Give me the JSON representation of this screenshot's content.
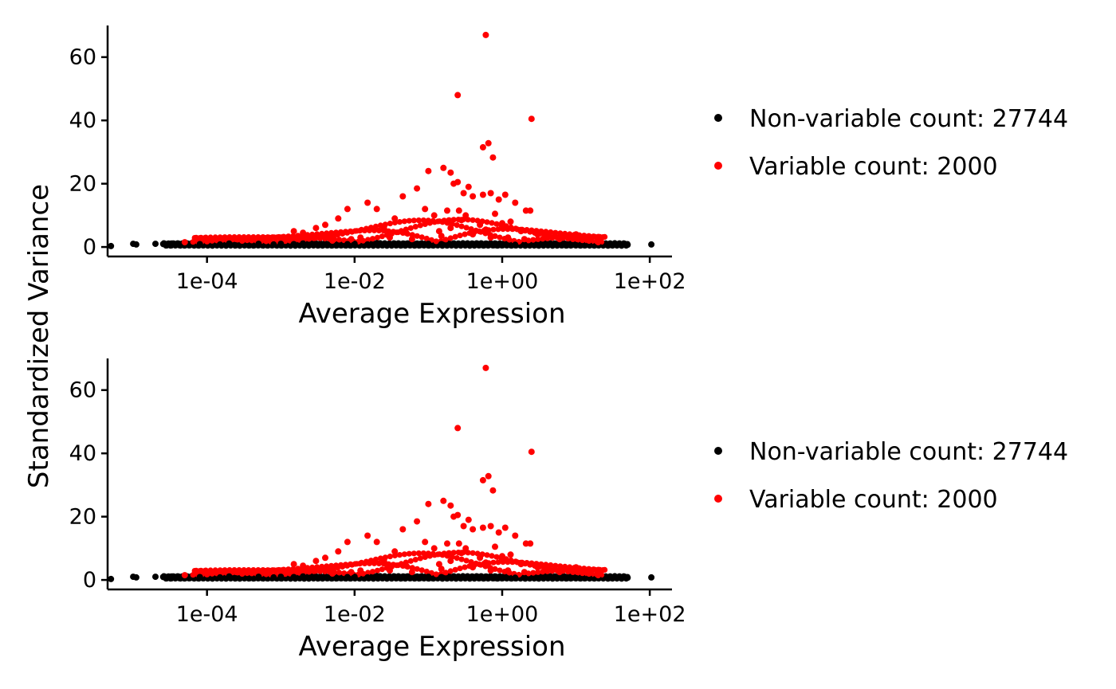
{
  "colors": {
    "non_variable": "#000000",
    "variable": "#ff0000",
    "axis": "#000000",
    "background": "#ffffff"
  },
  "y_axis_title": "Standardized Variance",
  "chart_data": [
    {
      "type": "scatter",
      "xlabel": "Average Expression",
      "ylabel": "Standardized Variance",
      "x_scale": "log10",
      "xlim": [
        4.5e-06,
        200
      ],
      "ylim": [
        -3,
        70
      ],
      "x_ticks": [
        0.0001,
        0.01,
        1,
        100
      ],
      "x_tick_labels": [
        "1e-04",
        "1e-02",
        "1e+00",
        "1e+02"
      ],
      "y_ticks": [
        0,
        20,
        40,
        60
      ],
      "y_tick_labels": [
        "0",
        "20",
        "40",
        "60"
      ],
      "grid": false,
      "legend_position": "right",
      "series": [
        {
          "name": "Non-variable count: 27744",
          "color": "#000000",
          "points": [
            [
              5e-06,
              0.3
            ],
            [
              1e-05,
              1.0
            ],
            [
              1.1e-05,
              0.8
            ],
            [
              2e-05,
              1.0
            ],
            [
              3e-05,
              0.9
            ],
            [
              3.3e-05,
              1.1
            ],
            [
              5e-05,
              0.8
            ],
            [
              8e-05,
              0.9
            ],
            [
              0.0001,
              1.0
            ],
            [
              0.00015,
              0.8
            ],
            [
              0.0002,
              1.1
            ],
            [
              0.0003,
              0.9
            ],
            [
              0.0005,
              1.0
            ],
            [
              0.0008,
              0.8
            ],
            [
              0.001,
              1.0
            ],
            [
              0.0015,
              0.9
            ],
            [
              0.002,
              1.1
            ],
            [
              0.003,
              0.8
            ],
            [
              0.005,
              1.0
            ],
            [
              0.008,
              0.9
            ],
            [
              0.01,
              1.0
            ],
            [
              0.015,
              0.8
            ],
            [
              0.02,
              1.2
            ],
            [
              0.03,
              0.9
            ],
            [
              0.05,
              1.0
            ],
            [
              0.08,
              0.8
            ],
            [
              0.1,
              1.0
            ],
            [
              0.15,
              0.9
            ],
            [
              0.2,
              0.7
            ],
            [
              0.3,
              1.0
            ],
            [
              0.5,
              0.8
            ],
            [
              0.8,
              0.6
            ],
            [
              1,
              0.9
            ],
            [
              1.5,
              0.7
            ],
            [
              2,
              0.8
            ],
            [
              3,
              0.6
            ],
            [
              5,
              0.8
            ],
            [
              8,
              0.7
            ],
            [
              10,
              0.6
            ],
            [
              15,
              0.8
            ],
            [
              20,
              0.7
            ],
            [
              30,
              0.6
            ],
            [
              40,
              0.8
            ],
            [
              50,
              0.7
            ],
            [
              105,
              0.8
            ]
          ]
        },
        {
          "name": "Variable count: 2000",
          "color": "#ff0000",
          "points": [
            [
              0.6,
              67
            ],
            [
              0.25,
              48
            ],
            [
              2.5,
              40.5
            ],
            [
              0.55,
              31.5
            ],
            [
              0.65,
              32.8
            ],
            [
              0.75,
              28.3
            ],
            [
              0.1,
              24
            ],
            [
              0.16,
              25
            ],
            [
              0.2,
              23.5
            ],
            [
              0.22,
              20
            ],
            [
              0.25,
              20.5
            ],
            [
              0.3,
              17
            ],
            [
              0.35,
              19
            ],
            [
              0.4,
              16
            ],
            [
              0.55,
              16.5
            ],
            [
              0.7,
              17
            ],
            [
              0.9,
              15
            ],
            [
              1.1,
              16.5
            ],
            [
              1.5,
              14
            ],
            [
              2.1,
              11.5
            ],
            [
              2.4,
              11.5
            ],
            [
              0.07,
              18.5
            ],
            [
              0.045,
              16
            ],
            [
              0.02,
              12
            ],
            [
              0.015,
              14
            ],
            [
              0.008,
              12
            ],
            [
              0.006,
              9
            ],
            [
              0.004,
              7
            ],
            [
              0.003,
              6
            ],
            [
              0.002,
              4.5
            ],
            [
              0.0015,
              5
            ],
            [
              0.001,
              3
            ],
            [
              0.0006,
              2.5
            ],
            [
              0.0003,
              2
            ],
            [
              0.0001,
              1.8
            ],
            [
              5e-05,
              1.5
            ],
            [
              0.09,
              12
            ],
            [
              0.12,
              10
            ],
            [
              0.18,
              11.5
            ],
            [
              0.26,
              11.5
            ],
            [
              0.28,
              8.5
            ],
            [
              0.32,
              10
            ],
            [
              0.5,
              7
            ],
            [
              0.6,
              5.5
            ],
            [
              0.8,
              10.5
            ],
            [
              1.0,
              7.5
            ],
            [
              1.3,
              8
            ],
            [
              1.8,
              5
            ],
            [
              3,
              4
            ],
            [
              4,
              3
            ],
            [
              6,
              2.5
            ],
            [
              8,
              3.5
            ],
            [
              10,
              4
            ],
            [
              15,
              2
            ],
            [
              20,
              1.5
            ],
            [
              0.035,
              9
            ],
            [
              0.025,
              6
            ],
            [
              0.05,
              4.5
            ],
            [
              0.14,
              5
            ],
            [
              0.2,
              6
            ],
            [
              0.4,
              4
            ],
            [
              0.7,
              3
            ],
            [
              1.2,
              3
            ],
            [
              2,
              2.5
            ],
            [
              0.012,
              3
            ],
            [
              0.03,
              3
            ],
            [
              0.06,
              2.5
            ],
            [
              0.15,
              3.5
            ],
            [
              0.009,
              2.5
            ],
            [
              0.005,
              2
            ]
          ]
        }
      ]
    },
    {
      "type": "scatter",
      "xlabel": "Average Expression",
      "ylabel": "Standardized Variance",
      "x_scale": "log10",
      "xlim": [
        4.5e-06,
        200
      ],
      "ylim": [
        -3,
        70
      ],
      "x_ticks": [
        0.0001,
        0.01,
        1,
        100
      ],
      "x_tick_labels": [
        "1e-04",
        "1e-02",
        "1e+00",
        "1e+02"
      ],
      "y_ticks": [
        0,
        20,
        40,
        60
      ],
      "y_tick_labels": [
        "0",
        "20",
        "40",
        "60"
      ],
      "grid": false,
      "legend_position": "right",
      "series": [
        {
          "name": "Non-variable count: 27744",
          "color": "#000000",
          "points": [
            [
              5e-06,
              0.3
            ],
            [
              1e-05,
              1.0
            ],
            [
              1.1e-05,
              0.8
            ],
            [
              2e-05,
              1.0
            ],
            [
              3e-05,
              0.9
            ],
            [
              3.3e-05,
              1.1
            ],
            [
              5e-05,
              0.8
            ],
            [
              8e-05,
              0.9
            ],
            [
              0.0001,
              1.0
            ],
            [
              0.00015,
              0.8
            ],
            [
              0.0002,
              1.1
            ],
            [
              0.0003,
              0.9
            ],
            [
              0.0005,
              1.0
            ],
            [
              0.0008,
              0.8
            ],
            [
              0.001,
              1.0
            ],
            [
              0.0015,
              0.9
            ],
            [
              0.002,
              1.1
            ],
            [
              0.003,
              0.8
            ],
            [
              0.005,
              1.0
            ],
            [
              0.008,
              0.9
            ],
            [
              0.01,
              1.0
            ],
            [
              0.015,
              0.8
            ],
            [
              0.02,
              1.2
            ],
            [
              0.03,
              0.9
            ],
            [
              0.05,
              1.0
            ],
            [
              0.08,
              0.8
            ],
            [
              0.1,
              1.0
            ],
            [
              0.15,
              0.9
            ],
            [
              0.2,
              0.7
            ],
            [
              0.3,
              1.0
            ],
            [
              0.5,
              0.8
            ],
            [
              0.8,
              0.6
            ],
            [
              1,
              0.9
            ],
            [
              1.5,
              0.7
            ],
            [
              2,
              0.8
            ],
            [
              3,
              0.6
            ],
            [
              5,
              0.8
            ],
            [
              8,
              0.7
            ],
            [
              10,
              0.6
            ],
            [
              15,
              0.8
            ],
            [
              20,
              0.7
            ],
            [
              30,
              0.6
            ],
            [
              40,
              0.8
            ],
            [
              50,
              0.7
            ],
            [
              105,
              0.8
            ]
          ]
        },
        {
          "name": "Variable count: 2000",
          "color": "#ff0000",
          "points": [
            [
              0.6,
              67
            ],
            [
              0.25,
              48
            ],
            [
              2.5,
              40.5
            ],
            [
              0.55,
              31.5
            ],
            [
              0.65,
              32.8
            ],
            [
              0.75,
              28.3
            ],
            [
              0.1,
              24
            ],
            [
              0.16,
              25
            ],
            [
              0.2,
              23.5
            ],
            [
              0.22,
              20
            ],
            [
              0.25,
              20.5
            ],
            [
              0.3,
              17
            ],
            [
              0.35,
              19
            ],
            [
              0.4,
              16
            ],
            [
              0.55,
              16.5
            ],
            [
              0.7,
              17
            ],
            [
              0.9,
              15
            ],
            [
              1.1,
              16.5
            ],
            [
              1.5,
              14
            ],
            [
              2.1,
              11.5
            ],
            [
              2.4,
              11.5
            ],
            [
              0.07,
              18.5
            ],
            [
              0.045,
              16
            ],
            [
              0.02,
              12
            ],
            [
              0.015,
              14
            ],
            [
              0.008,
              12
            ],
            [
              0.006,
              9
            ],
            [
              0.004,
              7
            ],
            [
              0.003,
              6
            ],
            [
              0.002,
              4.5
            ],
            [
              0.0015,
              5
            ],
            [
              0.001,
              3
            ],
            [
              0.0006,
              2.5
            ],
            [
              0.0003,
              2
            ],
            [
              0.0001,
              1.8
            ],
            [
              5e-05,
              1.5
            ],
            [
              0.09,
              12
            ],
            [
              0.12,
              10
            ],
            [
              0.18,
              11.5
            ],
            [
              0.26,
              11.5
            ],
            [
              0.28,
              8.5
            ],
            [
              0.32,
              10
            ],
            [
              0.5,
              7
            ],
            [
              0.6,
              5.5
            ],
            [
              0.8,
              10.5
            ],
            [
              1.0,
              7.5
            ],
            [
              1.3,
              8
            ],
            [
              1.8,
              5
            ],
            [
              3,
              4
            ],
            [
              4,
              3
            ],
            [
              6,
              2.5
            ],
            [
              8,
              3.5
            ],
            [
              10,
              4
            ],
            [
              15,
              2
            ],
            [
              20,
              1.5
            ],
            [
              0.035,
              9
            ],
            [
              0.025,
              6
            ],
            [
              0.05,
              4.5
            ],
            [
              0.14,
              5
            ],
            [
              0.2,
              6
            ],
            [
              0.4,
              4
            ],
            [
              0.7,
              3
            ],
            [
              1.2,
              3
            ],
            [
              2,
              2.5
            ],
            [
              0.012,
              3
            ],
            [
              0.03,
              3
            ],
            [
              0.06,
              2.5
            ],
            [
              0.15,
              3.5
            ],
            [
              0.009,
              2.5
            ],
            [
              0.005,
              2
            ]
          ]
        }
      ]
    }
  ]
}
